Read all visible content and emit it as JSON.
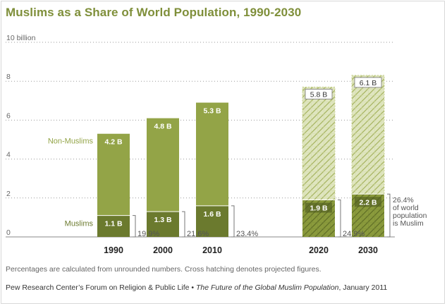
{
  "chart_data": {
    "type": "bar",
    "title": "Muslims as a Share of World Population, 1990-2030",
    "categories": [
      "1990",
      "2000",
      "2010",
      "2020",
      "2030"
    ],
    "projected": [
      false,
      false,
      false,
      true,
      true
    ],
    "series": [
      {
        "name": "Muslims",
        "values": [
          1.1,
          1.3,
          1.6,
          1.9,
          2.2
        ],
        "labels": [
          "1.1 B",
          "1.3 B",
          "1.6 B",
          "1.9 B",
          "2.2 B"
        ]
      },
      {
        "name": "Non-Muslims",
        "values": [
          4.2,
          4.8,
          5.3,
          5.8,
          6.1
        ],
        "labels": [
          "4.2 B",
          "4.8 B",
          "5.3 B",
          "5.8 B",
          "6.1 B"
        ]
      }
    ],
    "share_labels": [
      "19.9%",
      "21.6%",
      "23.4%",
      "24.9%"
    ],
    "share_note_2030": [
      "26.4%",
      "of world",
      "population",
      "is Muslim"
    ],
    "y_ticks": [
      "0",
      "2",
      "4",
      "6",
      "8",
      "10 billion"
    ],
    "ylim": [
      0,
      10
    ],
    "colors": {
      "muslim": "#6b7a2e",
      "non_muslim": "#93a447",
      "proj_muslim": "#8a9a3c",
      "proj_non_muslim": "#dfe5bf",
      "hatch": "#a6b45e",
      "title": "#7f8f3a"
    }
  },
  "footer": {
    "note": "Percentages are calculated from unrounded numbers. Cross hatching denotes projected figures.",
    "source_prefix": "Pew Research Center’s Forum on Religion & Public Life • ",
    "source_title": "The Future of the Global Muslim Population",
    "source_suffix": ", January 2011"
  }
}
